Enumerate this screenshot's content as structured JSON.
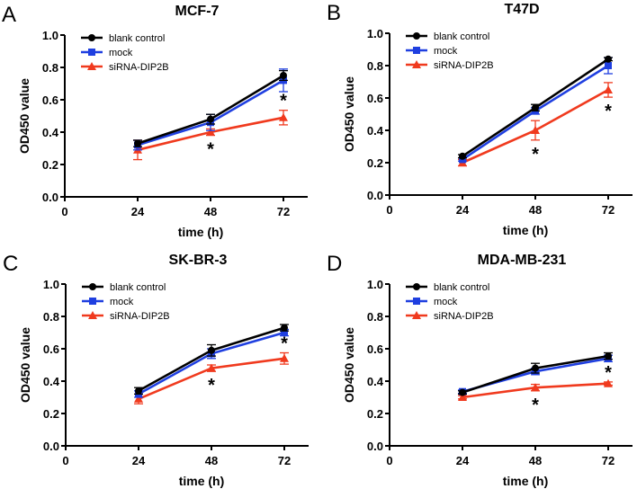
{
  "chart_data": [
    {
      "type": "line",
      "panel_label": "A",
      "title": "MCF-7",
      "xlabel": "time (h)",
      "ylabel": "OD450 value",
      "xlim": [
        0,
        80
      ],
      "ylim": [
        0,
        1.0
      ],
      "x_ticks": [
        "0",
        "24",
        "48",
        "72"
      ],
      "y_ticks": [
        "0.0",
        "0.2",
        "0.4",
        "0.6",
        "0.8",
        "1.0"
      ],
      "x": [
        24,
        48,
        72
      ],
      "legend": "top-left",
      "grid": false,
      "series": [
        {
          "name": "blank control",
          "color": "#000000",
          "marker": "circle",
          "values": [
            0.33,
            0.48,
            0.75
          ],
          "errors": [
            0.02,
            0.03,
            0.03
          ]
        },
        {
          "name": "mock",
          "color": "#1f3fe0",
          "marker": "square",
          "values": [
            0.32,
            0.46,
            0.72
          ],
          "errors": [
            0.03,
            0.05,
            0.07
          ]
        },
        {
          "name": "siRNA-DIP2B",
          "color": "#f03a1e",
          "marker": "triangle",
          "values": [
            0.29,
            0.4,
            0.49
          ],
          "errors": [
            0.06,
            0.02,
            0.045
          ]
        }
      ],
      "annotations": [
        {
          "x": 48,
          "text": "*",
          "position": "below"
        },
        {
          "x": 72,
          "text": "*",
          "position": "above"
        }
      ]
    },
    {
      "type": "line",
      "panel_label": "B",
      "title": "T47D",
      "xlabel": "time (h)",
      "ylabel": "OD450 value",
      "xlim": [
        0,
        80
      ],
      "ylim": [
        0,
        1.0
      ],
      "x_ticks": [
        "0",
        "24",
        "48",
        "72"
      ],
      "y_ticks": [
        "0.0",
        "0.2",
        "0.4",
        "0.6",
        "0.8",
        "1.0"
      ],
      "x": [
        24,
        48,
        72
      ],
      "legend": "top-left",
      "grid": false,
      "series": [
        {
          "name": "blank control",
          "color": "#000000",
          "marker": "circle",
          "values": [
            0.24,
            0.54,
            0.84
          ],
          "errors": [
            0.01,
            0.02,
            0.01
          ]
        },
        {
          "name": "mock",
          "color": "#1f3fe0",
          "marker": "square",
          "values": [
            0.22,
            0.52,
            0.8
          ],
          "errors": [
            0.01,
            0.02,
            0.05
          ]
        },
        {
          "name": "siRNA-DIP2B",
          "color": "#f03a1e",
          "marker": "triangle",
          "values": [
            0.2,
            0.4,
            0.65
          ],
          "errors": [
            0.02,
            0.06,
            0.045
          ]
        }
      ],
      "annotations": [
        {
          "x": 48,
          "text": "*",
          "position": "below"
        },
        {
          "x": 72,
          "text": "*",
          "position": "below"
        }
      ]
    },
    {
      "type": "line",
      "panel_label": "C",
      "title": "SK-BR-3",
      "xlabel": "time (h)",
      "ylabel": "OD450 value",
      "xlim": [
        0,
        80
      ],
      "ylim": [
        0,
        1.0
      ],
      "x_ticks": [
        "0",
        "24",
        "48",
        "72"
      ],
      "y_ticks": [
        "0.0",
        "0.2",
        "0.4",
        "0.6",
        "0.8",
        "1.0"
      ],
      "x": [
        24,
        48,
        72
      ],
      "legend": "top-left",
      "grid": false,
      "series": [
        {
          "name": "blank control",
          "color": "#000000",
          "marker": "circle",
          "values": [
            0.34,
            0.59,
            0.73
          ],
          "errors": [
            0.02,
            0.035,
            0.02
          ]
        },
        {
          "name": "mock",
          "color": "#1f3fe0",
          "marker": "square",
          "values": [
            0.32,
            0.57,
            0.7
          ],
          "errors": [
            0.02,
            0.03,
            0.02
          ]
        },
        {
          "name": "siRNA-DIP2B",
          "color": "#f03a1e",
          "marker": "triangle",
          "values": [
            0.29,
            0.48,
            0.54
          ],
          "errors": [
            0.03,
            0.02,
            0.035
          ]
        }
      ],
      "annotations": [
        {
          "x": 48,
          "text": "*",
          "position": "below"
        },
        {
          "x": 72,
          "text": "*",
          "position": "above"
        }
      ]
    },
    {
      "type": "line",
      "panel_label": "D",
      "title": "MDA-MB-231",
      "xlabel": "time (h)",
      "ylabel": "OD450 value",
      "xlim": [
        0,
        80
      ],
      "ylim": [
        0,
        1.0
      ],
      "x_ticks": [
        "0",
        "24",
        "48",
        "72"
      ],
      "y_ticks": [
        "0.0",
        "0.2",
        "0.4",
        "0.6",
        "0.8",
        "1.0"
      ],
      "x": [
        24,
        48,
        72
      ],
      "legend": "top-left",
      "grid": false,
      "series": [
        {
          "name": "blank control",
          "color": "#000000",
          "marker": "circle",
          "values": [
            0.33,
            0.48,
            0.555
          ],
          "errors": [
            0.01,
            0.03,
            0.02
          ]
        },
        {
          "name": "mock",
          "color": "#1f3fe0",
          "marker": "square",
          "values": [
            0.335,
            0.46,
            0.54
          ],
          "errors": [
            0.01,
            0.02,
            0.02
          ]
        },
        {
          "name": "siRNA-DIP2B",
          "color": "#f03a1e",
          "marker": "triangle",
          "values": [
            0.3,
            0.36,
            0.385
          ],
          "errors": [
            0.01,
            0.02,
            0.01
          ]
        }
      ],
      "annotations": [
        {
          "x": 48,
          "text": "*",
          "position": "below"
        },
        {
          "x": 72,
          "text": "*",
          "position": "above"
        }
      ]
    }
  ]
}
